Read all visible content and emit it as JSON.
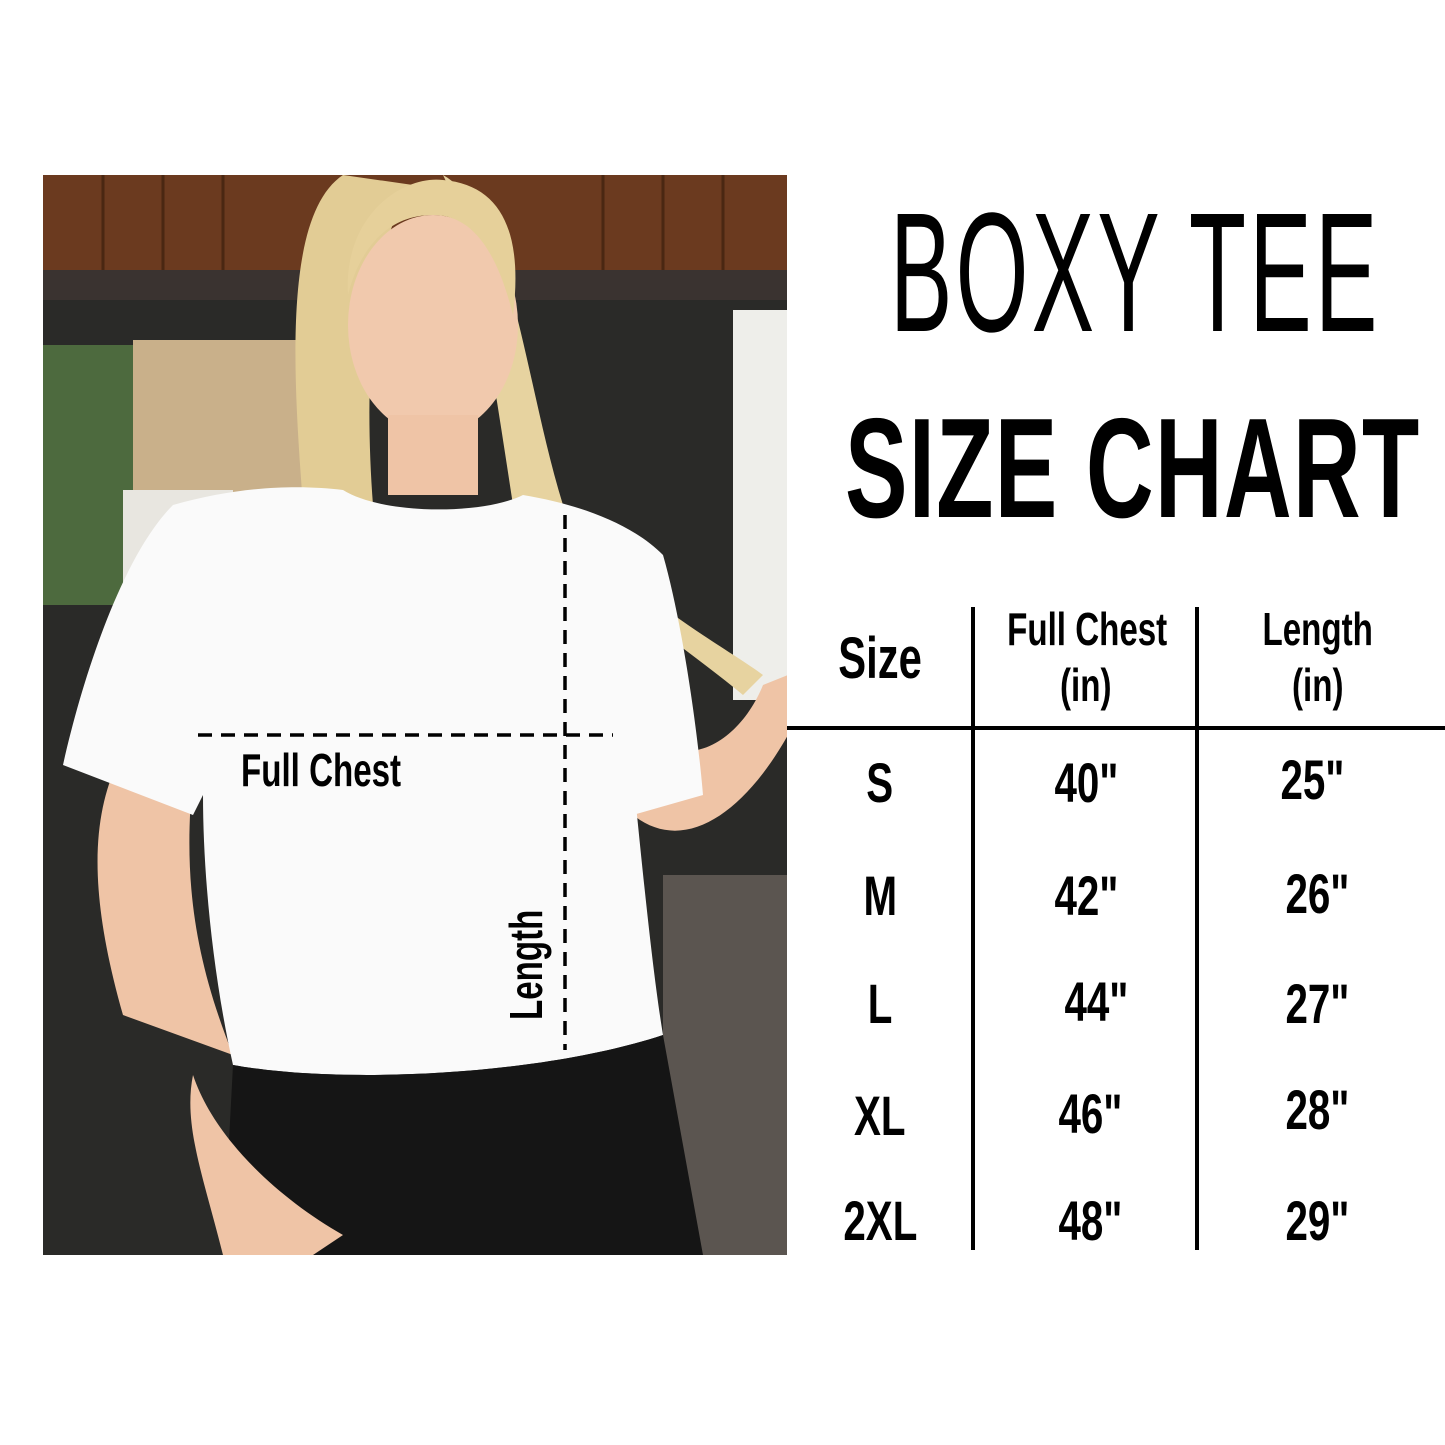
{
  "title": {
    "line1": "BOXY TEE",
    "line2": "SIZE CHART"
  },
  "photo": {
    "description_icon": "model-photo",
    "labels": {
      "chest": "Full Chest",
      "length": "Length"
    }
  },
  "table": {
    "headers": [
      {
        "line1": "Size",
        "line2": ""
      },
      {
        "line1": "Full Chest",
        "line2": "(in)"
      },
      {
        "line1": "Length",
        "line2": "(in)"
      }
    ],
    "rows": [
      {
        "size": "S",
        "chest": "40\"",
        "length": "25\""
      },
      {
        "size": "M",
        "chest": "42\"",
        "length": "26\""
      },
      {
        "size": "L",
        "chest": "44\"",
        "length": "27\""
      },
      {
        "size": "XL",
        "chest": "46\"",
        "length": "28\""
      },
      {
        "size": "2XL",
        "chest": "48\"",
        "length": "29\""
      }
    ]
  },
  "colors": {
    "text": "#000000",
    "background": "#ffffff"
  }
}
